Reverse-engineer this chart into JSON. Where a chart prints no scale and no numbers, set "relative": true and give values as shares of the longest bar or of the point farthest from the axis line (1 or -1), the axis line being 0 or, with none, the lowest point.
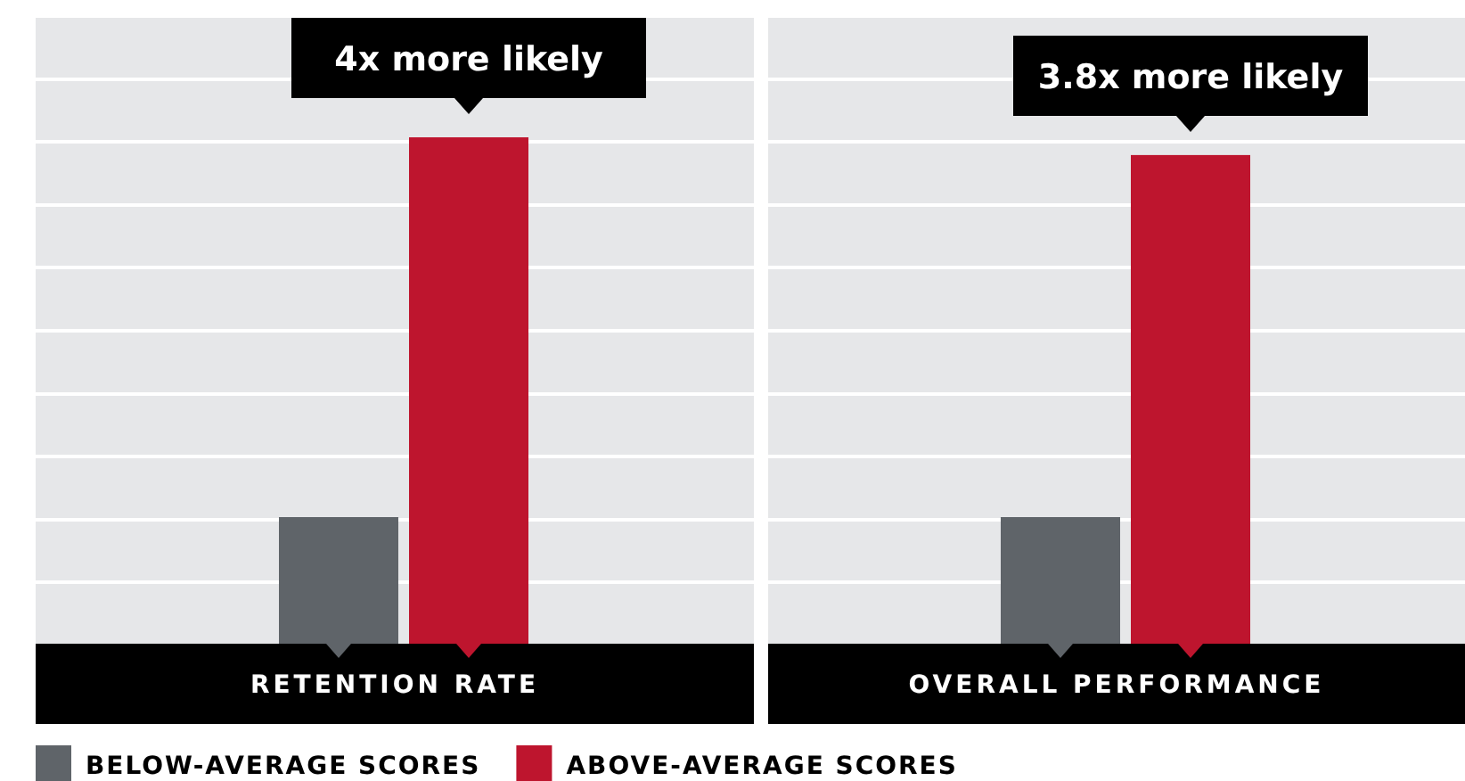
{
  "chart_data": {
    "type": "bar",
    "relative": true,
    "legend": "bottom left",
    "categories": [
      "RETENTION RATE",
      "OVERALL PERFORMANCE"
    ],
    "series": [
      {
        "name": "BELOW-AVERAGE SCORES",
        "color": "#5f6469",
        "values": [
          0.25,
          0.25
        ]
      },
      {
        "name": "ABOVE-AVERAGE SCORES",
        "color": "#be152e",
        "values": [
          1,
          0.965
        ]
      }
    ],
    "annotations": [
      "4x more likely",
      "3.8x more likely"
    ]
  }
}
